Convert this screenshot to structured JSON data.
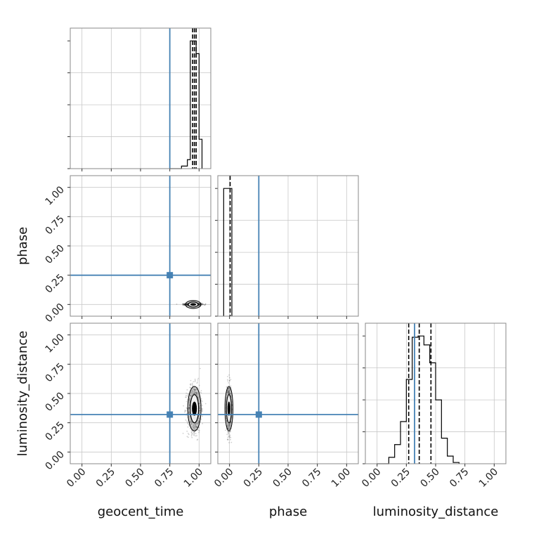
{
  "chart_data": {
    "type": "corner",
    "parameters": [
      "geocent_time",
      "phase",
      "luminosity_distance"
    ],
    "axis_labels": {
      "x": [
        "geocent_time",
        "phase",
        "luminosity_distance"
      ],
      "y": [
        "phase",
        "luminosity_distance"
      ]
    },
    "ticks": {
      "values": [
        0.0,
        0.25,
        0.5,
        0.75,
        1.0
      ],
      "labels": [
        "0.00",
        "0.25",
        "0.50",
        "0.75",
        "1.00"
      ]
    },
    "range": [
      -0.1,
      1.1
    ],
    "injection": {
      "geocent_time": 0.75,
      "phase": 0.25,
      "luminosity_distance": 0.32
    },
    "injection_color": "#4682b4",
    "histograms": {
      "geocent_time": {
        "bin_edges": [
          0.75,
          0.8,
          0.85,
          0.9,
          0.925,
          0.95,
          0.975,
          1.0,
          1.025
        ],
        "counts": [
          0,
          0,
          0.02,
          0.07,
          1.0,
          1.0,
          0.9,
          0.23
        ],
        "quantiles": [
          0.945,
          0.96,
          0.975
        ]
      },
      "phase": {
        "bin_edges": [
          -0.05,
          0.0,
          0.02
        ],
        "counts": [
          1.0,
          1.0
        ],
        "quantiles": [
          0.005
        ]
      },
      "luminosity_distance": {
        "bin_edges": [
          0.0,
          0.05,
          0.1,
          0.15,
          0.2,
          0.25,
          0.3,
          0.35,
          0.4,
          0.45,
          0.5,
          0.55,
          0.6,
          0.65,
          0.7
        ],
        "counts": [
          0,
          0,
          0.05,
          0.15,
          0.33,
          0.66,
          0.99,
          1.0,
          0.93,
          0.79,
          0.5,
          0.2,
          0.06,
          0.01
        ],
        "quantiles": [
          0.27,
          0.36,
          0.46
        ]
      }
    },
    "scatter_2d": [
      {
        "panel": "phase_vs_geocent_time",
        "x_center": 0.95,
        "y_center": 0.0,
        "x_spread": 0.035,
        "y_spread": 0.005
      },
      {
        "panel": "luminosity_distance_vs_geocent_time",
        "x_center": 0.96,
        "y_center": 0.37,
        "x_spread": 0.03,
        "y_spread": 0.1
      },
      {
        "panel": "luminosity_distance_vs_phase",
        "x_center": -0.005,
        "y_center": 0.37,
        "x_spread": 0.01,
        "y_spread": 0.1
      }
    ],
    "grid": true
  }
}
